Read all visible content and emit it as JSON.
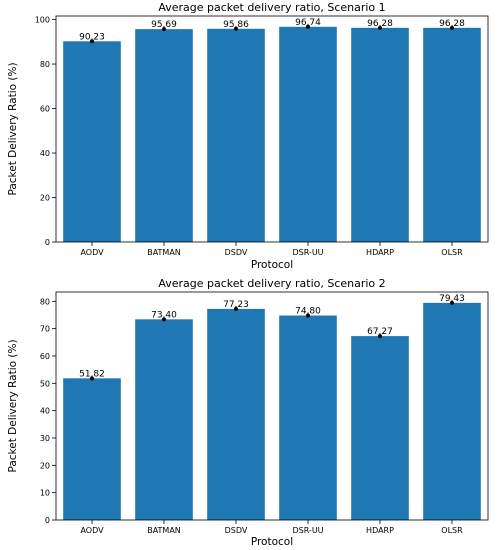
{
  "chart_data": [
    {
      "type": "bar",
      "title": "Average packet delivery ratio, Scenario 1",
      "xlabel": "Protocol",
      "ylabel": "Packet Delivery Ratio (%)",
      "categories": [
        "AODV",
        "BATMAN",
        "DSDV",
        "DSR-UU",
        "HDARP",
        "OLSR"
      ],
      "values": [
        90.23,
        95.69,
        95.86,
        96.74,
        96.28,
        96.28
      ],
      "value_labels": [
        "90,23",
        "95,69",
        "95,86",
        "96,74",
        "96,28",
        "96,28"
      ],
      "ylim": [
        0,
        101.6
      ],
      "yticks": [
        0,
        20,
        40,
        60,
        80,
        100
      ],
      "ytick_labels": [
        "0",
        "20",
        "40",
        "60",
        "80",
        "100"
      ],
      "bar_color": "#1f77b4",
      "grid": false,
      "legend": "none"
    },
    {
      "type": "bar",
      "title": "Average packet delivery ratio, Scenario 2",
      "xlabel": "Protocol",
      "ylabel": "Packet Delivery Ratio (%)",
      "categories": [
        "AODV",
        "BATMAN",
        "DSDV",
        "DSR-UU",
        "HDARP",
        "OLSR"
      ],
      "values": [
        51.82,
        73.4,
        77.23,
        74.8,
        67.27,
        79.43
      ],
      "value_labels": [
        "51,82",
        "73,40",
        "77,23",
        "74,80",
        "67,27",
        "79,43"
      ],
      "ylim": [
        0,
        83.4
      ],
      "yticks": [
        0,
        10,
        20,
        30,
        40,
        50,
        60,
        70,
        80
      ],
      "ytick_labels": [
        "0",
        "10",
        "20",
        "30",
        "40",
        "50",
        "60",
        "70",
        "80"
      ],
      "bar_color": "#1f77b4",
      "grid": false,
      "legend": "none"
    }
  ]
}
